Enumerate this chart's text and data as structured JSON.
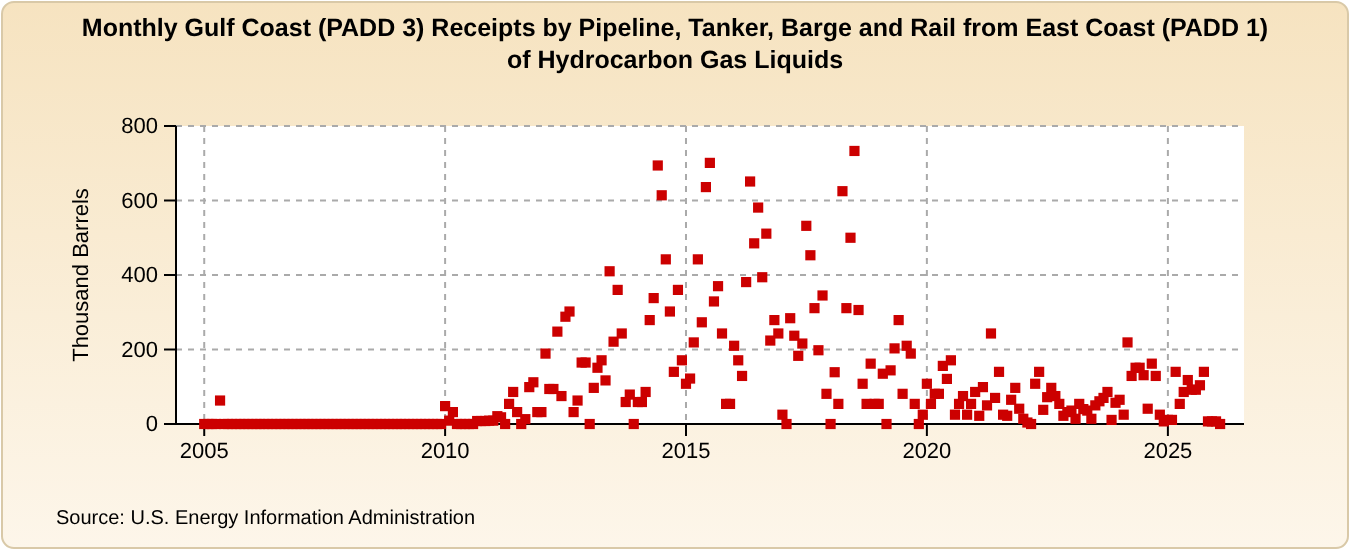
{
  "chart_data": {
    "type": "scatter",
    "title": "Monthly Gulf Coast (PADD 3) Receipts by Pipeline, Tanker, Barge and Rail from East Coast (PADD 1) of Hydrocarbon Gas Liquids",
    "ylabel": "Thousand Barrels",
    "annotations": [
      "Source: U.S. Energy Information Administration"
    ],
    "x": [
      "2005-01",
      "2005-02",
      "2005-03",
      "2005-04",
      "2005-05",
      "2005-06",
      "2005-07",
      "2005-08",
      "2005-09",
      "2005-10",
      "2005-11",
      "2005-12",
      "2006-01",
      "2006-02",
      "2006-03",
      "2006-04",
      "2006-05",
      "2006-06",
      "2006-07",
      "2006-08",
      "2006-09",
      "2006-10",
      "2006-11",
      "2006-12",
      "2007-01",
      "2007-02",
      "2007-03",
      "2007-04",
      "2007-05",
      "2007-06",
      "2007-07",
      "2007-08",
      "2007-09",
      "2007-10",
      "2007-11",
      "2007-12",
      "2008-01",
      "2008-02",
      "2008-03",
      "2008-04",
      "2008-05",
      "2008-06",
      "2008-07",
      "2008-08",
      "2008-09",
      "2008-10",
      "2008-11",
      "2008-12",
      "2009-01",
      "2009-02",
      "2009-03",
      "2009-04",
      "2009-05",
      "2009-06",
      "2009-07",
      "2009-08",
      "2009-09",
      "2009-10",
      "2009-11",
      "2009-12",
      "2010-01",
      "2010-02",
      "2010-03",
      "2010-04",
      "2010-05",
      "2010-06",
      "2010-07",
      "2010-08",
      "2010-09",
      "2010-10",
      "2010-11",
      "2010-12",
      "2011-01",
      "2011-02",
      "2011-03",
      "2011-04",
      "2011-05",
      "2011-06",
      "2011-07",
      "2011-08",
      "2011-09",
      "2011-10",
      "2011-11",
      "2011-12",
      "2012-01",
      "2012-02",
      "2012-03",
      "2012-04",
      "2012-05",
      "2012-06",
      "2012-07",
      "2012-08",
      "2012-09",
      "2012-10",
      "2012-11",
      "2012-12",
      "2013-01",
      "2013-02",
      "2013-03",
      "2013-04",
      "2013-05",
      "2013-06",
      "2013-07",
      "2013-08",
      "2013-09",
      "2013-10",
      "2013-11",
      "2013-12",
      "2014-01",
      "2014-02",
      "2014-03",
      "2014-04",
      "2014-05",
      "2014-06",
      "2014-07",
      "2014-08",
      "2014-09",
      "2014-10",
      "2014-11",
      "2014-12",
      "2015-01",
      "2015-02",
      "2015-03",
      "2015-04",
      "2015-05",
      "2015-06",
      "2015-07",
      "2015-08",
      "2015-09",
      "2015-10",
      "2015-11",
      "2015-12",
      "2016-01",
      "2016-02",
      "2016-03",
      "2016-04",
      "2016-05",
      "2016-06",
      "2016-07",
      "2016-08",
      "2016-09",
      "2016-10",
      "2016-11",
      "2016-12",
      "2017-01",
      "2017-02",
      "2017-03",
      "2017-04",
      "2017-05",
      "2017-06",
      "2017-07",
      "2017-08",
      "2017-09",
      "2017-10",
      "2017-11",
      "2017-12",
      "2018-01",
      "2018-02",
      "2018-03",
      "2018-04",
      "2018-05",
      "2018-06",
      "2018-07",
      "2018-08",
      "2018-09",
      "2018-10",
      "2018-11",
      "2018-12",
      "2019-01",
      "2019-02",
      "2019-03",
      "2019-04",
      "2019-05",
      "2019-06",
      "2019-07",
      "2019-08",
      "2019-09",
      "2019-10",
      "2019-11",
      "2019-12",
      "2020-01",
      "2020-02",
      "2020-03",
      "2020-04",
      "2020-05",
      "2020-06",
      "2020-07",
      "2020-08",
      "2020-09",
      "2020-10",
      "2020-11",
      "2020-12",
      "2021-01",
      "2021-02",
      "2021-03",
      "2021-04",
      "2021-05",
      "2021-06",
      "2021-07",
      "2021-08",
      "2021-09",
      "2021-10",
      "2021-11",
      "2021-12",
      "2022-01",
      "2022-02",
      "2022-03",
      "2022-04",
      "2022-05",
      "2022-06",
      "2022-07",
      "2022-08",
      "2022-09",
      "2022-10",
      "2022-11",
      "2022-12",
      "2023-01",
      "2023-02",
      "2023-03",
      "2023-04",
      "2023-05",
      "2023-06",
      "2023-07",
      "2023-08",
      "2023-09",
      "2023-10",
      "2023-11",
      "2023-12",
      "2024-01",
      "2024-02",
      "2024-03",
      "2024-04",
      "2024-05",
      "2024-06",
      "2024-07",
      "2024-08",
      "2024-09",
      "2024-10",
      "2024-11",
      "2024-12",
      "2025-01",
      "2025-02",
      "2025-03",
      "2025-04",
      "2025-05",
      "2025-06",
      "2025-07",
      "2025-08",
      "2025-09",
      "2025-10",
      "2025-11",
      "2025-12",
      "2026-01",
      "2026-02"
    ],
    "series": [
      {
        "color": "#cc0000",
        "values": [
          0,
          0,
          0,
          0,
          63,
          0,
          0,
          0,
          0,
          0,
          0,
          0,
          0,
          0,
          0,
          0,
          0,
          0,
          0,
          0,
          0,
          0,
          0,
          0,
          0,
          0,
          0,
          0,
          0,
          0,
          0,
          0,
          0,
          0,
          0,
          0,
          0,
          0,
          0,
          0,
          0,
          0,
          0,
          0,
          0,
          0,
          0,
          0,
          0,
          0,
          0,
          0,
          0,
          0,
          0,
          0,
          0,
          0,
          0,
          0,
          48,
          9,
          32,
          0,
          0,
          0,
          0,
          0,
          8,
          8,
          8,
          9,
          9,
          21,
          18,
          0,
          54,
          86,
          32,
          0,
          13,
          99,
          112,
          32,
          32,
          189,
          94,
          94,
          248,
          75,
          288,
          302,
          32,
          63,
          165,
          165,
          0,
          97,
          151,
          171,
          117,
          410,
          221,
          360,
          243,
          59,
          79,
          0,
          59,
          59,
          86,
          279,
          338,
          694,
          614,
          442,
          302,
          140,
          360,
          171,
          108,
          122,
          219,
          442,
          273,
          636,
          701,
          329,
          370,
          243,
          54,
          54,
          210,
          171,
          129,
          381,
          651,
          485,
          581,
          394,
          511,
          224,
          279,
          243,
          25,
          0,
          284,
          237,
          183,
          216,
          532,
          453,
          311,
          198,
          345,
          81,
          0,
          139,
          54,
          625,
          311,
          500,
          733,
          306,
          108,
          54,
          162,
          54,
          54,
          135,
          0,
          144,
          203,
          279,
          81,
          210,
          189,
          54,
          0,
          25,
          108,
          54,
          81,
          81,
          156,
          121,
          171,
          25,
          54,
          75,
          25,
          54,
          86,
          22,
          99,
          50,
          243,
          70,
          140,
          25,
          22,
          65,
          97,
          41,
          14,
          4,
          0,
          108,
          140,
          38,
          72,
          97,
          75,
          54,
          22,
          32,
          36,
          14,
          54,
          40,
          36,
          14,
          50,
          61,
          70,
          86,
          11,
          57,
          65,
          25,
          219,
          129,
          151,
          151,
          131,
          41,
          162,
          129,
          25,
          7,
          11,
          11,
          140,
          54,
          86,
          118,
          92,
          92,
          104,
          140,
          7,
          7,
          7,
          0
        ]
      }
    ],
    "xlim": [
      "2004-06",
      "2026-08"
    ],
    "xticks": [
      {
        "value": "2005-01",
        "label": "2005"
      },
      {
        "value": "2010-01",
        "label": "2010"
      },
      {
        "value": "2015-01",
        "label": "2015"
      },
      {
        "value": "2020-01",
        "label": "2020"
      },
      {
        "value": "2025-01",
        "label": "2025"
      }
    ],
    "ylim": [
      0,
      800
    ],
    "yticks": [
      0,
      200,
      400,
      600,
      800
    ],
    "grid": true,
    "marker": "square"
  }
}
